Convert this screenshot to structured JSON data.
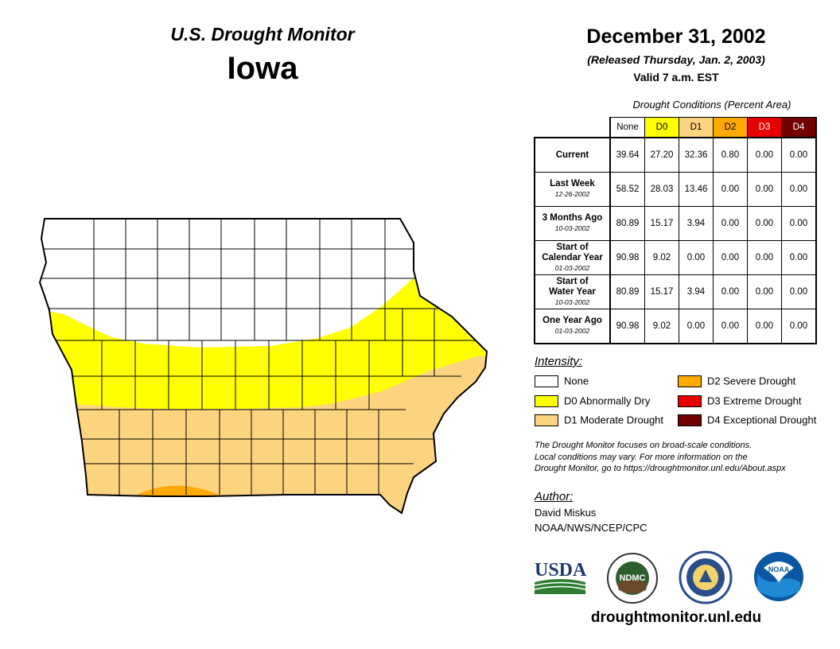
{
  "header": {
    "title": "U.S. Drought Monitor",
    "state": "Iowa"
  },
  "date": {
    "main": "December 31, 2002",
    "released": "(Released Thursday, Jan. 2, 2003)",
    "valid": "Valid 7 a.m. EST"
  },
  "colors": {
    "none": "#ffffff",
    "d0": "#ffff00",
    "d1": "#fcd37f",
    "d2": "#ffaa00",
    "d3": "#e60000",
    "d4": "#730000"
  },
  "table": {
    "caption": "Drought Conditions (Percent Area)",
    "columns": [
      "None",
      "D0",
      "D1",
      "D2",
      "D3",
      "D4"
    ],
    "rows": [
      {
        "label": "Current",
        "sublabel": "",
        "values": [
          "39.64",
          "27.20",
          "32.36",
          "0.80",
          "0.00",
          "0.00"
        ]
      },
      {
        "label": "Last Week",
        "sublabel": "12-26-2002",
        "values": [
          "58.52",
          "28.03",
          "13.46",
          "0.00",
          "0.00",
          "0.00"
        ]
      },
      {
        "label": "3 Months Ago",
        "sublabel": "10-03-2002",
        "values": [
          "80.89",
          "15.17",
          "3.94",
          "0.00",
          "0.00",
          "0.00"
        ]
      },
      {
        "label": "Start of Calendar Year",
        "sublabel": "01-03-2002",
        "values": [
          "90.98",
          "9.02",
          "0.00",
          "0.00",
          "0.00",
          "0.00"
        ]
      },
      {
        "label": "Start of Water Year",
        "sublabel": "10-03-2002",
        "values": [
          "80.89",
          "15.17",
          "3.94",
          "0.00",
          "0.00",
          "0.00"
        ]
      },
      {
        "label": "One Year Ago",
        "sublabel": "01-03-2002",
        "values": [
          "90.98",
          "9.02",
          "0.00",
          "0.00",
          "0.00",
          "0.00"
        ]
      }
    ]
  },
  "legend": {
    "title": "Intensity:",
    "items": [
      {
        "label": "None"
      },
      {
        "label": "D0 Abnormally Dry"
      },
      {
        "label": "D1 Moderate Drought"
      },
      {
        "label": "D2 Severe Drought"
      },
      {
        "label": "D3 Extreme Drought"
      },
      {
        "label": "D4 Exceptional Drought"
      }
    ]
  },
  "note": {
    "line1": "The Drought Monitor focuses on broad-scale conditions.",
    "line2": "Local conditions may vary. For more information on the",
    "line3": "Drought Monitor, go to https://droughtmonitor.unl.edu/About.aspx"
  },
  "author": {
    "title": "Author:",
    "name": "David Miskus",
    "org": "NOAA/NWS/NCEP/CPC"
  },
  "logos": {
    "usda": "USDA",
    "ndmc": "NDMC",
    "noaa": "NOAA"
  },
  "footer": {
    "url": "droughtmonitor.unl.edu"
  }
}
